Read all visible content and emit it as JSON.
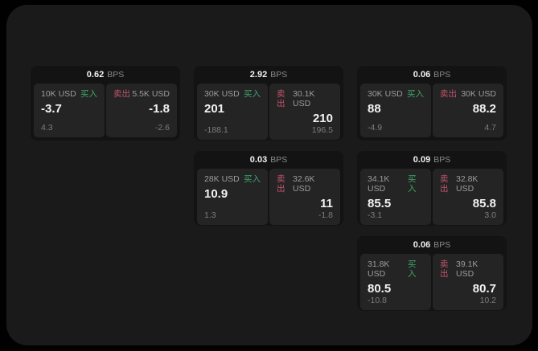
{
  "theme": {
    "page_bg": "#010101",
    "window_bg": "#1a1a1a",
    "card_bg": "#131313",
    "tile_bg": "#242424",
    "buy_color": "#3fa468",
    "sell_color": "#c2536e",
    "price_color": "#f2f2f2",
    "muted_color": "#7d7d7d"
  },
  "labels": {
    "bps": "BPS",
    "buy": "买入",
    "sell": "卖出"
  },
  "cards": [
    {
      "bps": "0.62",
      "buy": {
        "amount": "10K USD",
        "value": "-3.7",
        "sub": "4.3"
      },
      "sell": {
        "amount": "5.5K USD",
        "value": "-1.8",
        "sub": "-2.6"
      }
    },
    {
      "bps": "2.92",
      "buy": {
        "amount": "30K USD",
        "value": "201",
        "sub": "-188.1"
      },
      "sell": {
        "amount": "30.1K USD",
        "value": "210",
        "sub": "196.5"
      }
    },
    {
      "bps": "0.06",
      "buy": {
        "amount": "30K USD",
        "value": "88",
        "sub": "-4.9"
      },
      "sell": {
        "amount": "30K USD",
        "value": "88.2",
        "sub": "4.7"
      }
    },
    {
      "bps": "0.03",
      "buy": {
        "amount": "28K USD",
        "value": "10.9",
        "sub": "1.3"
      },
      "sell": {
        "amount": "32.6K USD",
        "value": "11",
        "sub": "-1.8"
      }
    },
    {
      "bps": "0.09",
      "buy": {
        "amount": "34.1K USD",
        "value": "85.5",
        "sub": "-3.1"
      },
      "sell": {
        "amount": "32.8K USD",
        "value": "85.8",
        "sub": "3.0"
      }
    },
    {
      "bps": "0.06",
      "buy": {
        "amount": "31.8K USD",
        "value": "80.5",
        "sub": "-10.8"
      },
      "sell": {
        "amount": "39.1K USD",
        "value": "80.7",
        "sub": "10.2"
      }
    }
  ]
}
